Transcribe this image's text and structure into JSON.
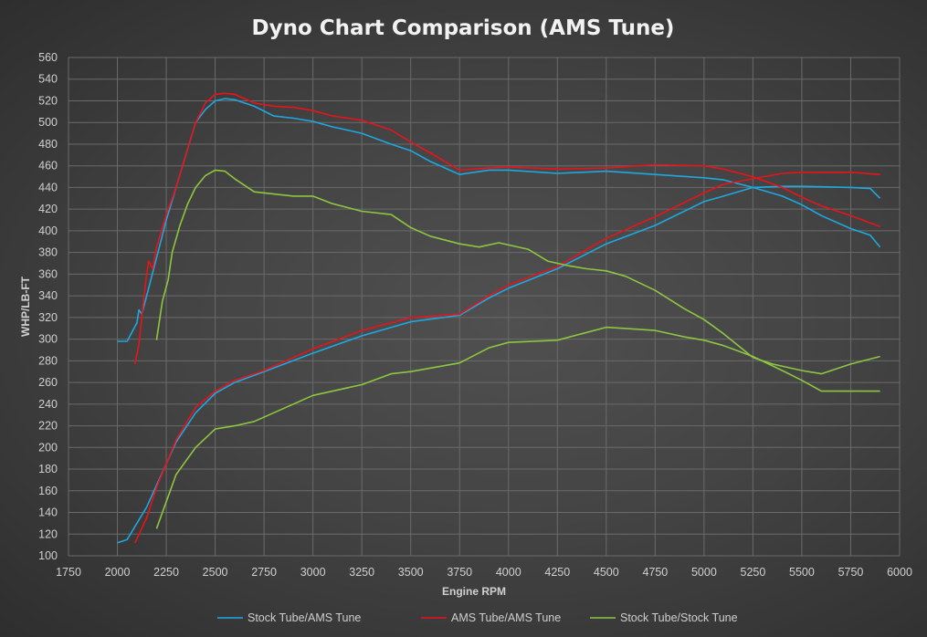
{
  "chart_data": {
    "type": "line",
    "title": "Dyno Chart Comparison (AMS Tune)",
    "xlabel": "Engine RPM",
    "ylabel": "WHP/LB-FT",
    "xlim": [
      1750,
      6000
    ],
    "ylim": [
      100,
      560
    ],
    "xticks": [
      1750,
      2000,
      2250,
      2500,
      2750,
      3000,
      3250,
      3500,
      3750,
      4000,
      4250,
      4500,
      4750,
      5000,
      5250,
      5500,
      5750,
      6000
    ],
    "yticks": [
      100,
      120,
      140,
      160,
      180,
      200,
      220,
      240,
      260,
      280,
      300,
      320,
      340,
      360,
      380,
      400,
      420,
      440,
      460,
      480,
      500,
      520,
      540,
      560
    ],
    "grid": true,
    "legend_position": "bottom",
    "series": [
      {
        "name": "Stock Tube/AMS Tune",
        "color": "#1ea8e0",
        "curves": [
          {
            "x": [
              2000,
              2050,
              2100,
              2110,
              2125,
              2150,
              2200,
              2250,
              2300,
              2350,
              2400,
              2450,
              2500,
              2550,
              2600,
              2700,
              2800,
              2900,
              3000,
              3100,
              3250,
              3400,
              3500,
              3600,
              3750,
              3900,
              4000,
              4250,
              4500,
              4750,
              5000,
              5100,
              5250,
              5400,
              5500,
              5600,
              5750,
              5850,
              5900
            ],
            "y": [
              298,
              298,
              315,
              327,
              323,
              340,
              375,
              410,
              440,
              470,
              500,
              512,
              520,
              522,
              521,
              515,
              506,
              504,
              501,
              496,
              490,
              480,
              474,
              464,
              452,
              456,
              456,
              453,
              455,
              452,
              449,
              447,
              440,
              432,
              424,
              414,
              402,
              396,
              385
            ]
          },
          {
            "x": [
              2000,
              2050,
              2100,
              2150,
              2200,
              2250,
              2300,
              2400,
              2500,
              2600,
              2750,
              3000,
              3250,
              3500,
              3750,
              3900,
              4000,
              4250,
              4500,
              4750,
              5000,
              5100,
              5250,
              5400,
              5500,
              5750,
              5850,
              5900
            ],
            "y": [
              112,
              115,
              130,
              145,
              165,
              185,
              205,
              232,
              250,
              260,
              270,
              287,
              303,
              316,
              322,
              338,
              347,
              365,
              388,
              405,
              427,
              432,
              440,
              441,
              441,
              440,
              439,
              430
            ]
          }
        ]
      },
      {
        "name": "AMS Tube/AMS Tune",
        "color": "#e8131b",
        "curves": [
          {
            "x": [
              2090,
              2110,
              2130,
              2150,
              2160,
              2180,
              2200,
              2250,
              2300,
              2350,
              2400,
              2450,
              2500,
              2550,
              2600,
              2700,
              2800,
              2900,
              3000,
              3100,
              3250,
              3400,
              3500,
              3600,
              3750,
              3900,
              4000,
              4250,
              4500,
              4750,
              5000,
              5100,
              5250,
              5400,
              5500,
              5600,
              5750,
              5900
            ],
            "y": [
              277,
              295,
              330,
              360,
              372,
              365,
              385,
              415,
              440,
              470,
              500,
              518,
              526,
              527,
              526,
              518,
              515,
              514,
              511,
              506,
              502,
              493,
              482,
              472,
              456,
              458,
              459,
              457,
              458,
              461,
              460,
              457,
              450,
              440,
              431,
              423,
              414,
              404
            ]
          },
          {
            "x": [
              2090,
              2150,
              2200,
              2250,
              2300,
              2400,
              2500,
              2600,
              2750,
              3000,
              3250,
              3500,
              3750,
              3900,
              4000,
              4250,
              4500,
              4750,
              5000,
              5100,
              5250,
              5400,
              5500,
              5750,
              5900
            ],
            "y": [
              112,
              135,
              163,
              185,
              207,
              237,
              252,
              262,
              271,
              291,
              308,
              320,
              323,
              340,
              350,
              367,
              393,
              413,
              435,
              443,
              448,
              453,
              454,
              454,
              452
            ]
          }
        ]
      },
      {
        "name": "Stock Tube/Stock Tune",
        "color": "#8dc640",
        "curves": [
          {
            "x": [
              2200,
              2230,
              2260,
              2280,
              2320,
              2360,
              2400,
              2450,
              2500,
              2550,
              2600,
              2700,
              2800,
              2900,
              3000,
              3100,
              3250,
              3400,
              3500,
              3600,
              3750,
              3850,
              3950,
              4100,
              4200,
              4300,
              4400,
              4500,
              4600,
              4750,
              4900,
              5000,
              5100,
              5250,
              5350,
              5500,
              5600,
              5750,
              5900
            ],
            "y": [
              299,
              335,
              355,
              380,
              405,
              425,
              440,
              451,
              456,
              455,
              448,
              436,
              434,
              432,
              432,
              425,
              418,
              415,
              403,
              395,
              388,
              385,
              389,
              383,
              372,
              368,
              365,
              363,
              358,
              345,
              328,
              318,
              305,
              283,
              277,
              271,
              268,
              277,
              284
            ]
          },
          {
            "x": [
              2200,
              2250,
              2300,
              2400,
              2500,
              2600,
              2700,
              2800,
              3000,
              3250,
              3400,
              3500,
              3750,
              3900,
              4000,
              4250,
              4500,
              4750,
              4900,
              5000,
              5100,
              5250,
              5400,
              5500,
              5600,
              5750,
              5900
            ],
            "y": [
              125,
              150,
              175,
              200,
              217,
              220,
              224,
              232,
              248,
              258,
              268,
              270,
              278,
              292,
              297,
              299,
              311,
              308,
              302,
              299,
              294,
              284,
              271,
              262,
              252,
              252,
              252
            ]
          }
        ]
      }
    ]
  }
}
